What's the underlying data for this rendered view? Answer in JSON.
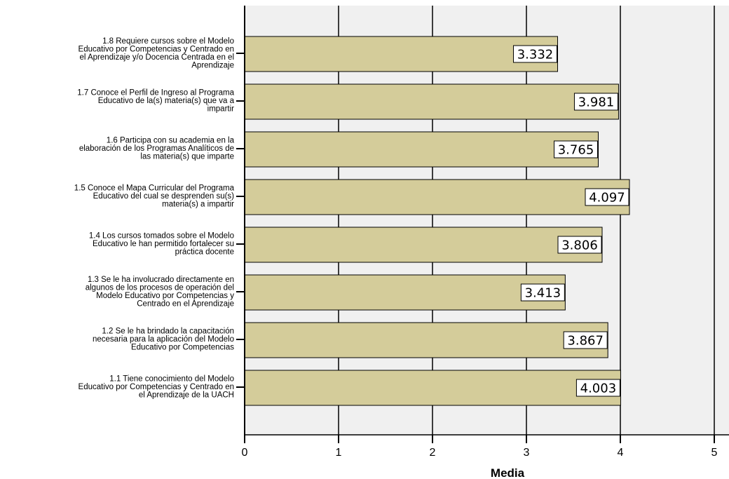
{
  "chart_data": {
    "type": "bar",
    "orientation": "horizontal",
    "categories": [
      [
        "1.8  Requiere  cursos sobre el Modelo",
        "Educativo por Competencias y Centrado en",
        "el Aprendizaje y/o Docencia Centrada en el",
        "Aprendizaje"
      ],
      [
        "1.7  Conoce el Perfil de Ingreso al Programa",
        "Educativo de la(s)  materia(s) que va a",
        "impartir"
      ],
      [
        "1.6  Participa con su academia en la",
        "elaboración de los Programas Analíticos de",
        "las materia(s) que imparte"
      ],
      [
        "1.5  Conoce el Mapa Curricular del Programa",
        "Educativo  del cual se desprenden su(s)",
        "materia(s) a impartir"
      ],
      [
        "1.4  Los  cursos  tomados sobre el Modelo",
        "Educativo le han permitido fortalecer su",
        "práctica docente"
      ],
      [
        "1.3  Se le ha  involucrado directamente en",
        "algunos de los procesos de operación del",
        "Modelo Educativo por Competencias y",
        "Centrado en el Aprendizaje"
      ],
      [
        "1.2  Se le ha brindado la capacitación",
        "necesaria  para la aplicación del Modelo",
        "Educativo por Competencias"
      ],
      [
        "1.1  Tiene  conocimiento del Modelo",
        "Educativo por Competencias y Centrado en",
        "el Aprendizaje de la UACH"
      ]
    ],
    "values": [
      3.332,
      3.981,
      3.765,
      4.097,
      3.806,
      3.413,
      3.867,
      4.003
    ],
    "value_labels": [
      "3.332",
      "3.981",
      "3.765",
      "4.097",
      "3.806",
      "3.413",
      "3.867",
      "4.003"
    ],
    "xlabel": "Media",
    "xlim": [
      0,
      5
    ],
    "ticks": [
      "0",
      "1",
      "2",
      "3",
      "4",
      "5"
    ],
    "grid": "vertical",
    "colors": {
      "bar": "#D4CC9A",
      "bar_edge": "#000000",
      "plot_bg": "#F0F0F0",
      "grid": "#000000"
    }
  }
}
